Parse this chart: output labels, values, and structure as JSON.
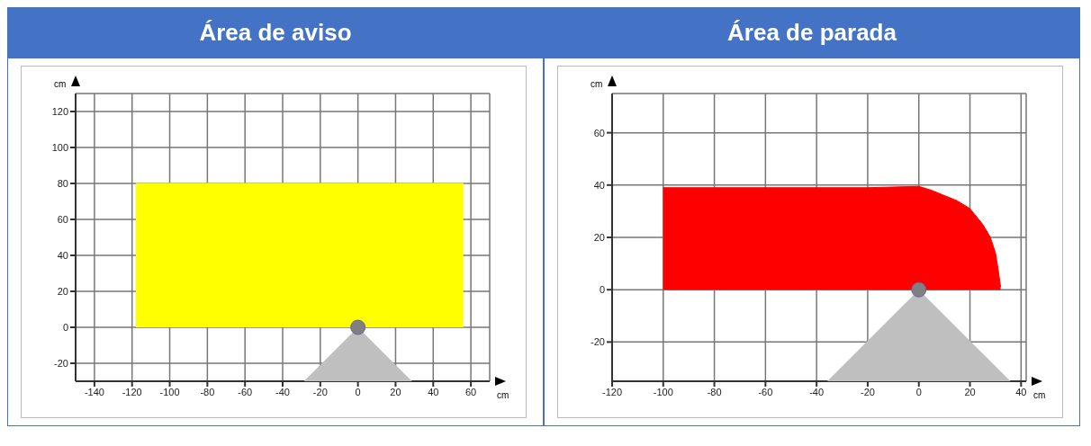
{
  "chart_data": [
    {
      "type": "area",
      "title": "Área de aviso",
      "xlabel": "cm",
      "ylabel": "cm",
      "xlim": [
        -150,
        70
      ],
      "xticks": [
        -140,
        -120,
        -100,
        -80,
        -60,
        -40,
        -20,
        0,
        20,
        40,
        60
      ],
      "ylim": [
        -30,
        130
      ],
      "yticks": [
        -20,
        0,
        20,
        40,
        60,
        80,
        100,
        120
      ],
      "grid": true,
      "series": [
        {
          "color": "#ffff00",
          "x": [
            -118,
            -60,
            0,
            56
          ],
          "values": [
            80,
            80,
            80,
            80
          ]
        }
      ]
    },
    {
      "type": "area",
      "title": "Área de parada",
      "xlabel": "cm",
      "ylabel": "cm",
      "xlim": [
        -120,
        42
      ],
      "xticks": [
        -120,
        -100,
        -80,
        -60,
        -40,
        -20,
        0,
        20,
        40
      ],
      "ylim": [
        -35,
        75
      ],
      "yticks": [
        -20,
        0,
        20,
        40,
        60
      ],
      "grid": true,
      "series": [
        {
          "color": "#ff0000",
          "x": [
            -100,
            -80,
            -60,
            -40,
            -20,
            0,
            5,
            10,
            15,
            20,
            25,
            28,
            30,
            31,
            32
          ],
          "values": [
            39,
            39,
            39,
            39,
            39,
            39.5,
            38,
            36,
            34,
            31,
            25,
            20,
            14,
            8,
            1
          ]
        }
      ]
    }
  ]
}
